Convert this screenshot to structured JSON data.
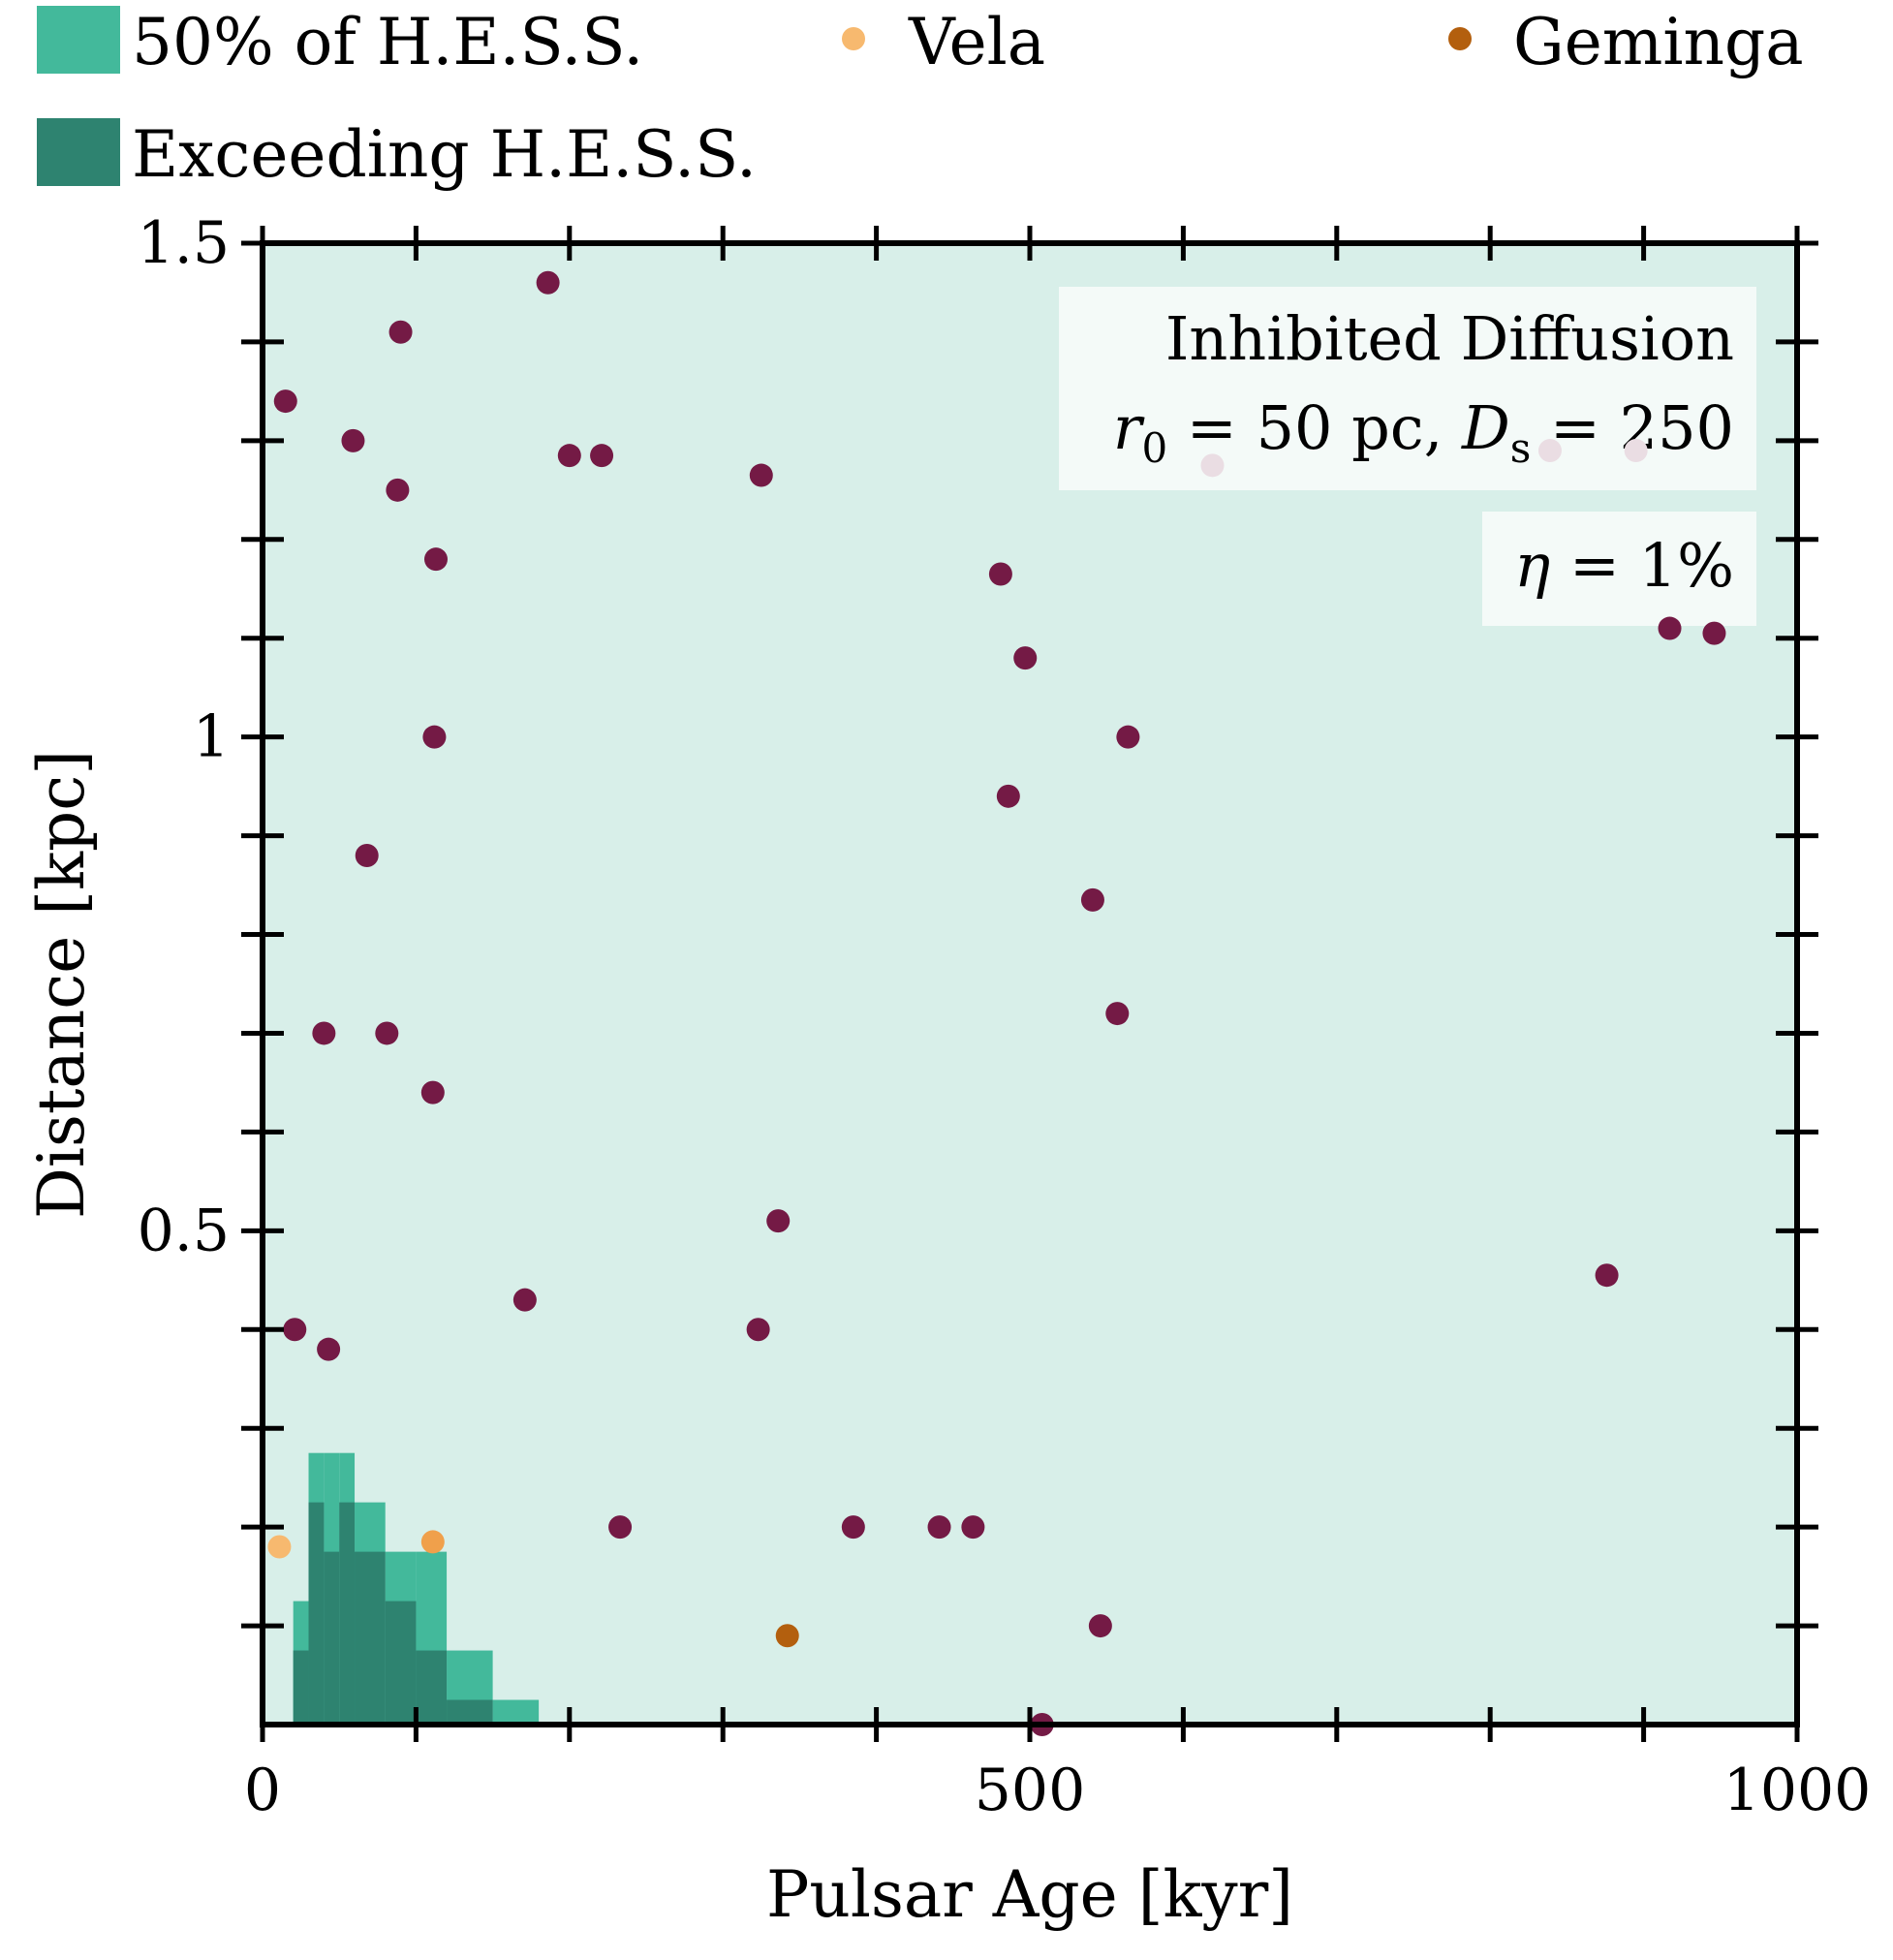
{
  "chart_data": {
    "type": "scatter",
    "xlabel": "Pulsar Age [kyr]",
    "ylabel": "Distance [kpc]",
    "xlim": [
      0,
      1000
    ],
    "ylim": [
      0.0,
      1.5
    ],
    "x_ticks": [
      {
        "value": 0,
        "label": "0"
      },
      {
        "value": 500,
        "label": "500"
      },
      {
        "value": 1000,
        "label": "1000"
      }
    ],
    "x_minor_ticks": [
      100,
      200,
      300,
      400,
      600,
      700,
      800,
      900
    ],
    "y_ticks": [
      {
        "value": 0.5,
        "label": "0.5"
      },
      {
        "value": 1.0,
        "label": "1"
      },
      {
        "value": 1.5,
        "label": "1.5"
      }
    ],
    "y_minor_ticks": [
      0.1,
      0.2,
      0.3,
      0.4,
      0.6,
      0.7,
      0.8,
      0.9,
      1.1,
      1.2,
      1.3,
      1.4
    ],
    "colors": {
      "background_region": "#d8efe9",
      "fifty_percent": "#43b99b",
      "exceeding": "#2e8370",
      "pulsar": "#741a45",
      "vela": "#f7b96f",
      "vela_alt": "#f0a04b",
      "geminga": "#b35f0e",
      "annotation_bg": "#f4faf8"
    },
    "legend": {
      "fifty_percent": "50% of H.E.S.S.",
      "exceeding": "Exceeding H.E.S.S.",
      "vela": "Vela",
      "geminga": "Geminga"
    },
    "annotation": {
      "model": "Inhibited Diffusion",
      "params_r0_symbol": "r",
      "params_r0_sub": "0",
      "params_r0_value": " = 50 pc, ",
      "params_ds_symbol": "D",
      "params_ds_sub": "s",
      "params_ds_value": " = 250",
      "eta_symbol": "η",
      "eta_value": " = 1%"
    },
    "region_50pct": [
      {
        "x0": 20,
        "x1": 30,
        "y0": 0.0,
        "y1": 0.125
      },
      {
        "x0": 30,
        "x1": 40,
        "y0": 0.0,
        "y1": 0.275
      },
      {
        "x0": 40,
        "x1": 50,
        "y0": 0.0,
        "y1": 0.275
      },
      {
        "x0": 50,
        "x1": 60,
        "y0": 0.0,
        "y1": 0.275
      },
      {
        "x0": 60,
        "x1": 80,
        "y0": 0.0,
        "y1": 0.225
      },
      {
        "x0": 80,
        "x1": 100,
        "y0": 0.0,
        "y1": 0.175
      },
      {
        "x0": 100,
        "x1": 120,
        "y0": 0.0,
        "y1": 0.175
      },
      {
        "x0": 120,
        "x1": 150,
        "y0": 0.0,
        "y1": 0.075
      },
      {
        "x0": 150,
        "x1": 180,
        "y0": 0.0,
        "y1": 0.025
      }
    ],
    "region_exceeding": [
      {
        "x0": 20,
        "x1": 30,
        "y0": 0.0,
        "y1": 0.075
      },
      {
        "x0": 30,
        "x1": 40,
        "y0": 0.0,
        "y1": 0.225
      },
      {
        "x0": 40,
        "x1": 50,
        "y0": 0.0,
        "y1": 0.175
      },
      {
        "x0": 50,
        "x1": 60,
        "y0": 0.0,
        "y1": 0.225
      },
      {
        "x0": 60,
        "x1": 80,
        "y0": 0.0,
        "y1": 0.175
      },
      {
        "x0": 80,
        "x1": 100,
        "y0": 0.0,
        "y1": 0.125
      },
      {
        "x0": 100,
        "x1": 120,
        "y0": 0.0,
        "y1": 0.075
      },
      {
        "x0": 120,
        "x1": 150,
        "y0": 0.0,
        "y1": 0.025
      }
    ],
    "pulsars": [
      {
        "x": 15,
        "y": 1.34
      },
      {
        "x": 90,
        "y": 1.41
      },
      {
        "x": 186,
        "y": 1.46
      },
      {
        "x": 59,
        "y": 1.3
      },
      {
        "x": 200,
        "y": 1.285
      },
      {
        "x": 221,
        "y": 1.285
      },
      {
        "x": 88,
        "y": 1.25
      },
      {
        "x": 325,
        "y": 1.265
      },
      {
        "x": 113,
        "y": 1.18
      },
      {
        "x": 481,
        "y": 1.165
      },
      {
        "x": 497,
        "y": 1.08
      },
      {
        "x": 112,
        "y": 1.0
      },
      {
        "x": 564,
        "y": 1.0
      },
      {
        "x": 486,
        "y": 0.94
      },
      {
        "x": 68,
        "y": 0.88
      },
      {
        "x": 541,
        "y": 0.835
      },
      {
        "x": 557,
        "y": 0.72
      },
      {
        "x": 40,
        "y": 0.7
      },
      {
        "x": 81,
        "y": 0.7
      },
      {
        "x": 111,
        "y": 0.64
      },
      {
        "x": 917,
        "y": 1.11
      },
      {
        "x": 946,
        "y": 1.105
      },
      {
        "x": 876,
        "y": 0.455
      },
      {
        "x": 336,
        "y": 0.51
      },
      {
        "x": 171,
        "y": 0.43
      },
      {
        "x": 21,
        "y": 0.4
      },
      {
        "x": 43,
        "y": 0.38
      },
      {
        "x": 323,
        "y": 0.4
      },
      {
        "x": 233,
        "y": 0.2
      },
      {
        "x": 385,
        "y": 0.2
      },
      {
        "x": 441,
        "y": 0.2
      },
      {
        "x": 463,
        "y": 0.2
      },
      {
        "x": 546,
        "y": 0.1
      },
      {
        "x": 508,
        "y": 0.0
      }
    ],
    "faded_pulsars": [
      {
        "x": 619,
        "y": 1.275
      },
      {
        "x": 839,
        "y": 1.29
      },
      {
        "x": 895,
        "y": 1.29
      }
    ],
    "vela_points": [
      {
        "x": 11,
        "y": 0.18
      },
      {
        "x": 111,
        "y": 0.185
      }
    ],
    "geminga_points": [
      {
        "x": 342,
        "y": 0.09
      }
    ]
  }
}
